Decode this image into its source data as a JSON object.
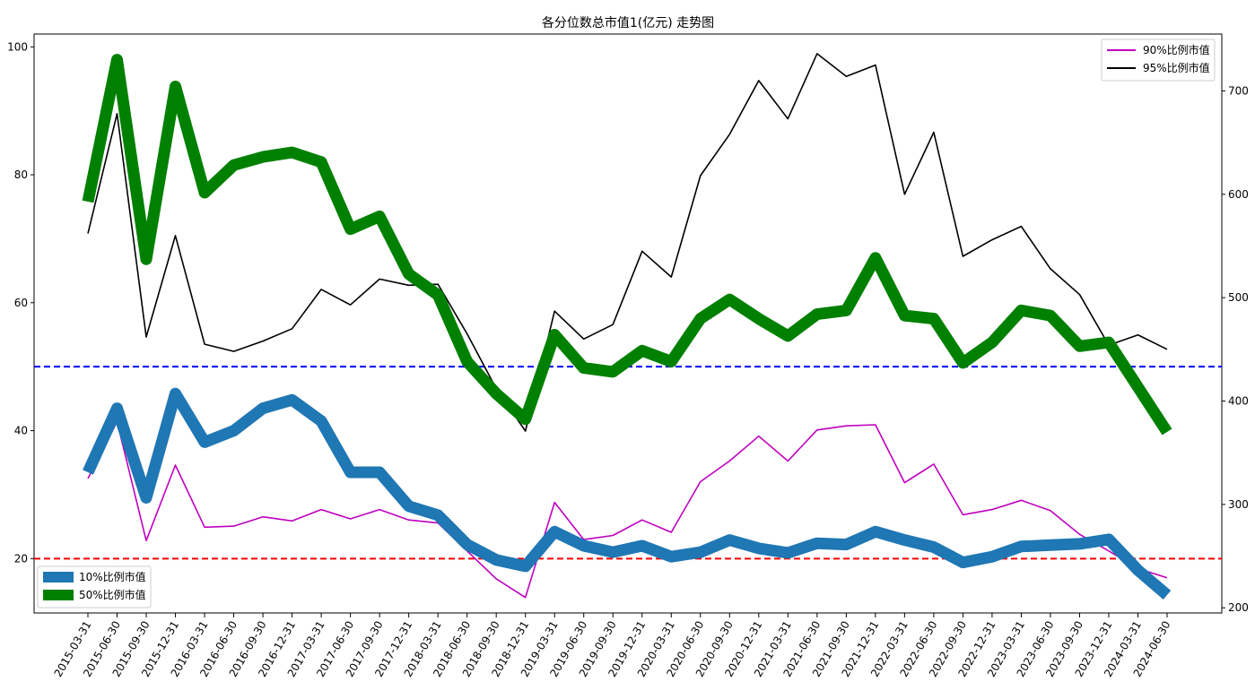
{
  "chart_data": {
    "type": "line",
    "title": "各分位数总市值1(亿元) 走势图",
    "x": [
      "2015-03-31",
      "2015-06-30",
      "2015-09-30",
      "2015-12-31",
      "2016-03-31",
      "2016-06-30",
      "2016-09-30",
      "2016-12-31",
      "2017-03-31",
      "2017-06-30",
      "2017-09-30",
      "2017-12-31",
      "2018-03-31",
      "2018-06-30",
      "2018-09-30",
      "2018-12-31",
      "2019-03-31",
      "2019-06-30",
      "2019-09-30",
      "2019-12-31",
      "2020-03-31",
      "2020-06-30",
      "2020-09-30",
      "2020-12-31",
      "2021-03-31",
      "2021-06-30",
      "2021-09-30",
      "2021-12-31",
      "2022-03-31",
      "2022-06-30",
      "2022-09-30",
      "2022-12-31",
      "2023-03-31",
      "2023-06-30",
      "2023-09-30",
      "2023-12-31",
      "2024-03-31",
      "2024-06-30"
    ],
    "left_axis": {
      "ylim": [
        11.5,
        102
      ],
      "ticks": [
        20,
        40,
        60,
        80,
        100
      ]
    },
    "right_axis": {
      "ylim": [
        195,
        755
      ],
      "ticks": [
        200,
        300,
        400,
        500,
        600,
        700
      ]
    },
    "series": [
      {
        "name": "10%比例市值",
        "axis": "left",
        "color": "#1f77b4",
        "width": 13,
        "values": [
          33.5,
          43.5,
          29.5,
          45.8,
          38.2,
          40,
          43.5,
          44.8,
          41.5,
          33.5,
          33.5,
          28.2,
          26.8,
          22.2,
          19.8,
          18.8,
          24.2,
          22,
          21,
          22,
          20.3,
          21,
          22.9,
          21.6,
          20.9,
          22.4,
          22.2,
          24.2,
          22.9,
          21.8,
          19.4,
          20.3,
          21.9,
          22.1,
          22.3,
          23,
          18.2,
          14.3
        ]
      },
      {
        "name": "50%比例市值",
        "axis": "left",
        "color": "#008000",
        "width": 13,
        "values": [
          75.8,
          98,
          66.8,
          93.8,
          77.2,
          81.5,
          82.8,
          83.5,
          82,
          71.5,
          73.5,
          64.5,
          61.2,
          50.8,
          45.8,
          41.8,
          55,
          49.8,
          49.2,
          52.5,
          50.8,
          57.5,
          60.5,
          57.5,
          54.8,
          58.2,
          58.8,
          67,
          58,
          57.5,
          50.6,
          53.8,
          58.8,
          58,
          53.2,
          53.8,
          46.8,
          39.8
        ]
      },
      {
        "name": "90%比例市值",
        "axis": "right",
        "color": "#bf00bf",
        "width": 1.6,
        "values": [
          325,
          380,
          265,
          338,
          278,
          279,
          288,
          284,
          295,
          286,
          295,
          285,
          282,
          255,
          228,
          210,
          302,
          266,
          270,
          285,
          273,
          322,
          342,
          366,
          342,
          372,
          376,
          377,
          321,
          339,
          290,
          295,
          304,
          294,
          271,
          255,
          238,
          229
        ]
      },
      {
        "name": "95%比例市值",
        "axis": "right",
        "color": "#000000",
        "width": 1.6,
        "values": [
          562,
          678,
          462,
          560,
          455,
          448,
          458,
          470,
          508,
          493,
          518,
          512,
          513,
          465,
          412,
          371,
          487,
          460,
          474,
          545,
          520,
          618,
          658,
          710,
          673,
          736,
          714,
          725,
          600,
          660,
          540,
          556,
          569,
          528,
          503,
          454,
          464,
          450
        ]
      }
    ],
    "reference_lines": [
      {
        "axis": "left",
        "value": 50,
        "color": "#0000ff",
        "style": "dashed"
      },
      {
        "axis": "left",
        "value": 20,
        "color": "#ff0000",
        "style": "dashed"
      }
    ],
    "legends": [
      {
        "placement": "top-right",
        "items": [
          "90%比例市值",
          "95%比例市值"
        ]
      },
      {
        "placement": "bottom-left",
        "items": [
          "10%比例市值",
          "50%比例市值"
        ]
      }
    ],
    "grid": false
  }
}
